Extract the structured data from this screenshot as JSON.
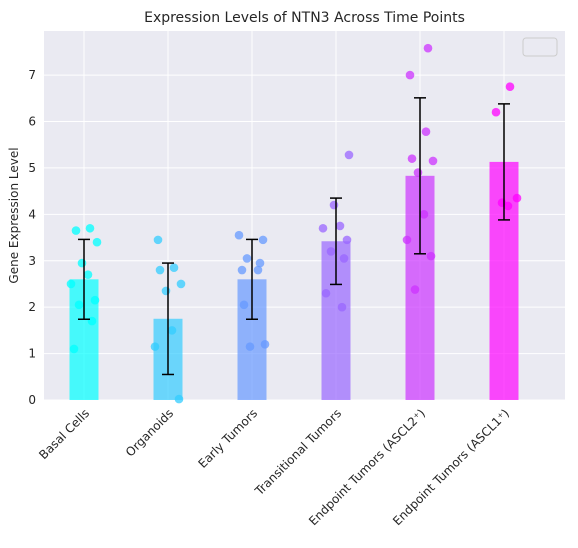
{
  "chart_data": {
    "type": "bar",
    "title": "Expression Levels of NTN3 Across Time Points",
    "xlabel": "",
    "ylabel": "Gene Expression Level",
    "ylim": [
      0,
      7.95
    ],
    "yticks": [
      "0",
      "1",
      "2",
      "3",
      "4",
      "5",
      "6",
      "7"
    ],
    "grid": true,
    "legend": "top-right (empty)",
    "categories": [
      "Basal Cells",
      "Organoids",
      "Early Tumors",
      "Transitional Tumors",
      "Endpoint Tumors (ASCL2⁺)",
      "Endpoint Tumors (ASCL1⁺)"
    ],
    "values": [
      2.6,
      1.75,
      2.6,
      3.42,
      4.83,
      5.13
    ],
    "errors": [
      0.86,
      1.2,
      0.86,
      0.93,
      1.68,
      1.25
    ],
    "colors": [
      "#00ffff",
      "#33ccff",
      "#6699ff",
      "#9966ff",
      "#cc33ff",
      "#ff00ff"
    ],
    "points": [
      [
        1.1,
        1.7,
        2.05,
        2.15,
        2.5,
        2.7,
        2.95,
        3.4,
        3.65,
        3.7
      ],
      [
        0.02,
        1.15,
        1.5,
        2.35,
        2.5,
        2.8,
        2.85,
        3.45
      ],
      [
        1.15,
        1.2,
        2.05,
        2.8,
        2.8,
        2.95,
        3.05,
        3.45,
        3.55
      ],
      [
        2.0,
        2.3,
        3.05,
        3.2,
        3.45,
        3.7,
        3.75,
        4.2,
        5.28
      ],
      [
        2.38,
        3.1,
        3.45,
        4.0,
        4.9,
        5.15,
        5.2,
        5.78,
        7.0,
        7.58
      ],
      [
        4.18,
        4.25,
        4.35,
        6.2,
        6.75
      ]
    ]
  }
}
